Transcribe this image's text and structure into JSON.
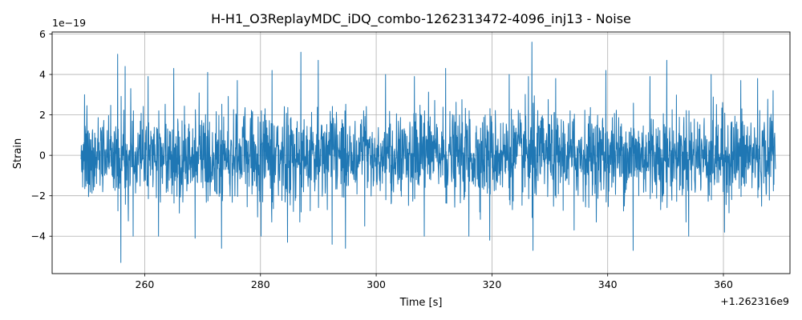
{
  "chart_data": {
    "type": "line",
    "title": "H-H1_O3ReplayMDC_iDQ_combo-1262313472-4096_inj13 - Noise",
    "xlabel": "Time [s]",
    "ylabel": "Strain",
    "x_offset_label": "+1.262316e9",
    "y_scale_label": "1e−19",
    "xlim": [
      244,
      371.5
    ],
    "ylim": [
      -5.85,
      6.1
    ],
    "x_ticks": [
      260,
      280,
      300,
      320,
      340,
      360
    ],
    "x_tick_labels": [
      "260",
      "280",
      "300",
      "320",
      "340",
      "360"
    ],
    "y_ticks": [
      -4,
      -2,
      0,
      2,
      4,
      6
    ],
    "y_tick_labels": [
      "−4",
      "−2",
      "0",
      "2",
      "4",
      "6"
    ],
    "grid": true,
    "legend": "none",
    "series": [
      {
        "color": "#1f77b4",
        "x_range": [
          249,
          369
        ],
        "typical_amplitude": 1.7,
        "peaks": [
          {
            "x": 249.6,
            "y": 3.0
          },
          {
            "x": 255.3,
            "y": 5.0
          },
          {
            "x": 255.9,
            "y": -5.3
          },
          {
            "x": 256.6,
            "y": 4.4
          },
          {
            "x": 258.0,
            "y": -4.0
          },
          {
            "x": 260.6,
            "y": 3.9
          },
          {
            "x": 262.4,
            "y": -4.0
          },
          {
            "x": 265.0,
            "y": 4.3
          },
          {
            "x": 268.7,
            "y": -4.1
          },
          {
            "x": 270.9,
            "y": 4.1
          },
          {
            "x": 273.3,
            "y": -4.6
          },
          {
            "x": 276.0,
            "y": 3.7
          },
          {
            "x": 280.1,
            "y": -4.0
          },
          {
            "x": 282.0,
            "y": 4.2
          },
          {
            "x": 284.7,
            "y": -4.3
          },
          {
            "x": 287.0,
            "y": 5.1
          },
          {
            "x": 290.0,
            "y": 4.7
          },
          {
            "x": 292.4,
            "y": -4.4
          },
          {
            "x": 294.7,
            "y": -4.6
          },
          {
            "x": 298.0,
            "y": -3.5
          },
          {
            "x": 301.6,
            "y": 4.0
          },
          {
            "x": 306.6,
            "y": 3.9
          },
          {
            "x": 308.3,
            "y": -4.0
          },
          {
            "x": 312.0,
            "y": 4.3
          },
          {
            "x": 316.0,
            "y": -4.0
          },
          {
            "x": 319.6,
            "y": -4.2
          },
          {
            "x": 323.0,
            "y": 4.0
          },
          {
            "x": 326.3,
            "y": 3.9
          },
          {
            "x": 326.9,
            "y": 5.6
          },
          {
            "x": 327.1,
            "y": -4.7
          },
          {
            "x": 331.0,
            "y": 3.8
          },
          {
            "x": 334.2,
            "y": -3.7
          },
          {
            "x": 339.7,
            "y": 4.2
          },
          {
            "x": 344.4,
            "y": -4.7
          },
          {
            "x": 347.3,
            "y": 3.9
          },
          {
            "x": 350.2,
            "y": 4.7
          },
          {
            "x": 354.0,
            "y": -4.0
          },
          {
            "x": 357.9,
            "y": 4.0
          },
          {
            "x": 360.2,
            "y": -3.8
          },
          {
            "x": 363.0,
            "y": 3.7
          },
          {
            "x": 365.9,
            "y": 3.8
          },
          {
            "x": 368.6,
            "y": 3.2
          }
        ]
      }
    ]
  }
}
